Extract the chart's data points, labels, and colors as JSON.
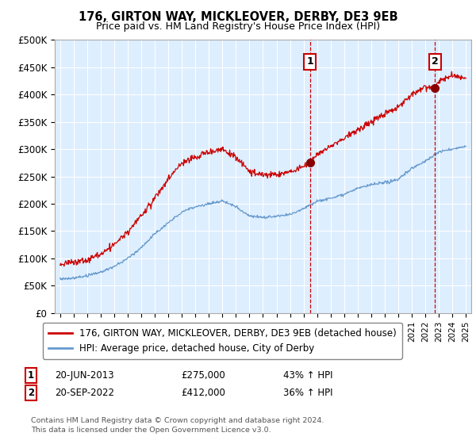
{
  "title": "176, GIRTON WAY, MICKLEOVER, DERBY, DE3 9EB",
  "subtitle": "Price paid vs. HM Land Registry's House Price Index (HPI)",
  "plot_bg_color": "#ddeeff",
  "grid_color": "#ffffff",
  "ylim": [
    0,
    500000
  ],
  "yticks": [
    0,
    50000,
    100000,
    150000,
    200000,
    250000,
    300000,
    350000,
    400000,
    450000,
    500000
  ],
  "ytick_labels": [
    "£0",
    "£50K",
    "£100K",
    "£150K",
    "£200K",
    "£250K",
    "£300K",
    "£350K",
    "£400K",
    "£450K",
    "£500K"
  ],
  "hpi_color": "#6699cc",
  "price_color": "#cc0000",
  "marker1_year": 2013.47,
  "marker1_value": 275000,
  "marker2_year": 2022.72,
  "marker2_value": 412000,
  "legend_line1": "176, GIRTON WAY, MICKLEOVER, DERBY, DE3 9EB (detached house)",
  "legend_line2": "HPI: Average price, detached house, City of Derby",
  "note1_date": "20-JUN-2013",
  "note1_price": "£275,000",
  "note1_hpi": "43% ↑ HPI",
  "note2_date": "20-SEP-2022",
  "note2_price": "£412,000",
  "note2_hpi": "36% ↑ HPI",
  "footer": "Contains HM Land Registry data © Crown copyright and database right 2024.\nThis data is licensed under the Open Government Licence v3.0."
}
